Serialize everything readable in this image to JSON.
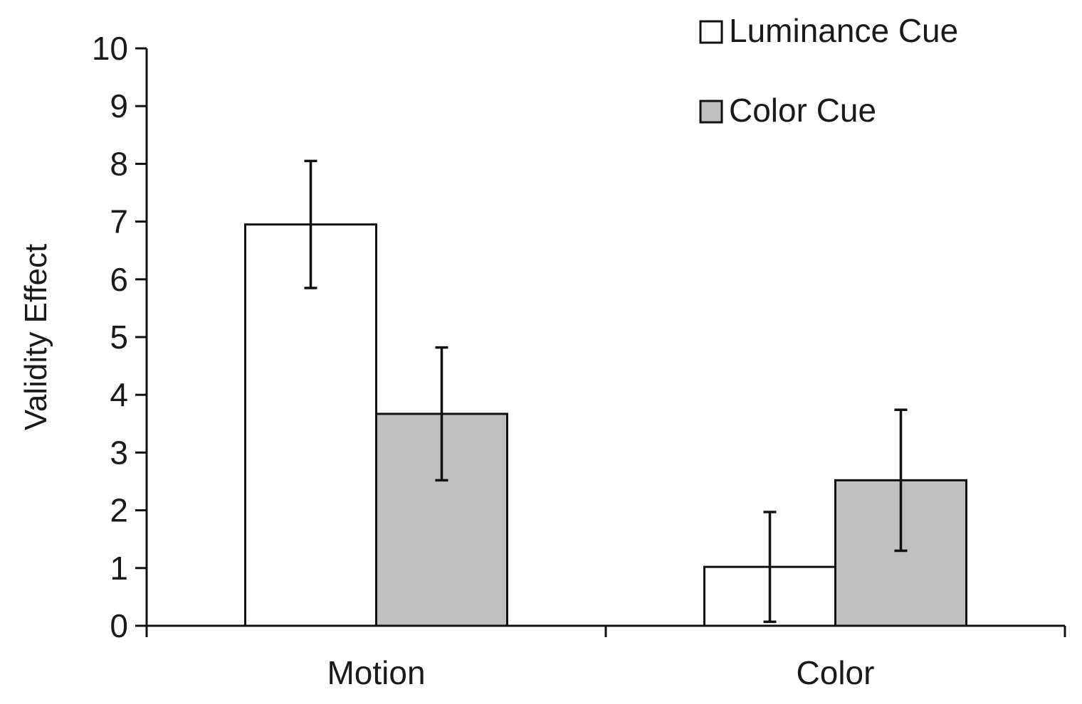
{
  "chart_data": {
    "type": "bar",
    "categories": [
      "Motion",
      "Color"
    ],
    "series": [
      {
        "name": "Luminance Cue",
        "color": "#ffffff",
        "values": [
          6.95,
          1.02
        ],
        "error": [
          1.1,
          0.95
        ]
      },
      {
        "name": "Color Cue",
        "color": "#c0c0c0",
        "values": [
          3.67,
          2.52
        ],
        "error": [
          1.15,
          1.22
        ]
      }
    ],
    "title": "",
    "xlabel": "",
    "ylabel": "Validity Effect",
    "ylim": [
      0,
      10
    ],
    "yticks": [
      0,
      1,
      2,
      3,
      4,
      5,
      6,
      7,
      8,
      9,
      10
    ],
    "grid": false,
    "legend_position": "top-right"
  }
}
